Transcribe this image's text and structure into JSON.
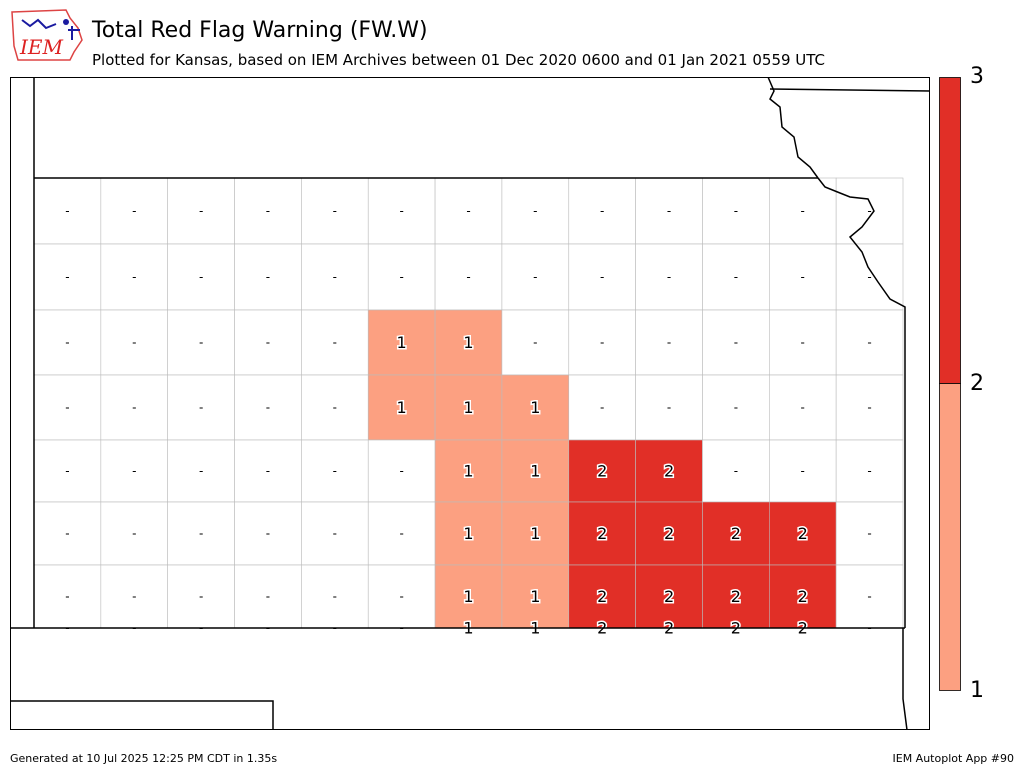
{
  "title": "Total Red Flag Warning (FW.W)",
  "subtitle": "Plotted for Kansas, based on IEM Archives  between 01 Dec 2020 0600 and 01 Jan 2021 0559 UTC",
  "logo": {
    "text": "IEM",
    "icon": "iem-logo-icon"
  },
  "footer": {
    "generated": "Generated at 10 Jul 2025 12:25 PM CDT in 1.35s",
    "app": "IEM Autoplot App #90"
  },
  "colors": {
    "level0": "#ffffff",
    "level1": "#fca081",
    "level2": "#e12f27",
    "border": "#bbbbbb",
    "state": "#000000"
  },
  "colorbar": {
    "ticks": [
      "1",
      "2",
      "3"
    ]
  },
  "map_data": {
    "state": "Kansas",
    "no_data_symbol": "-",
    "counties": [
      {
        "row": 0,
        "col": 0,
        "value": 0
      },
      {
        "row": 0,
        "col": 1,
        "value": 0
      },
      {
        "row": 0,
        "col": 2,
        "value": 0
      },
      {
        "row": 0,
        "col": 3,
        "value": 0
      },
      {
        "row": 0,
        "col": 4,
        "value": 0
      },
      {
        "row": 0,
        "col": 5,
        "value": 0
      },
      {
        "row": 0,
        "col": 6,
        "value": 0
      },
      {
        "row": 0,
        "col": 7,
        "value": 0
      },
      {
        "row": 0,
        "col": 8,
        "value": 0
      },
      {
        "row": 0,
        "col": 9,
        "value": 0
      },
      {
        "row": 0,
        "col": 10,
        "value": 0
      },
      {
        "row": 0,
        "col": 11,
        "value": 0
      },
      {
        "row": 0,
        "col": 12,
        "value": 0
      },
      {
        "row": 1,
        "col": 0,
        "value": 0
      },
      {
        "row": 1,
        "col": 1,
        "value": 0
      },
      {
        "row": 1,
        "col": 2,
        "value": 0
      },
      {
        "row": 1,
        "col": 3,
        "value": 0
      },
      {
        "row": 1,
        "col": 4,
        "value": 0
      },
      {
        "row": 1,
        "col": 5,
        "value": 0
      },
      {
        "row": 1,
        "col": 6,
        "value": 0
      },
      {
        "row": 1,
        "col": 7,
        "value": 0
      },
      {
        "row": 1,
        "col": 8,
        "value": 0
      },
      {
        "row": 1,
        "col": 9,
        "value": 0
      },
      {
        "row": 1,
        "col": 10,
        "value": 0
      },
      {
        "row": 1,
        "col": 11,
        "value": 0
      },
      {
        "row": 1,
        "col": 12,
        "value": 0
      },
      {
        "row": 2,
        "col": 0,
        "value": 0
      },
      {
        "row": 2,
        "col": 1,
        "value": 0
      },
      {
        "row": 2,
        "col": 2,
        "value": 0
      },
      {
        "row": 2,
        "col": 3,
        "value": 0
      },
      {
        "row": 2,
        "col": 4,
        "value": 0
      },
      {
        "row": 2,
        "col": 5,
        "value": 1
      },
      {
        "row": 2,
        "col": 6,
        "value": 1
      },
      {
        "row": 2,
        "col": 7,
        "value": 0
      },
      {
        "row": 2,
        "col": 8,
        "value": 0
      },
      {
        "row": 2,
        "col": 9,
        "value": 0
      },
      {
        "row": 2,
        "col": 10,
        "value": 0
      },
      {
        "row": 2,
        "col": 11,
        "value": 0
      },
      {
        "row": 2,
        "col": 12,
        "value": 0
      },
      {
        "row": 3,
        "col": 0,
        "value": 0
      },
      {
        "row": 3,
        "col": 1,
        "value": 0
      },
      {
        "row": 3,
        "col": 2,
        "value": 0
      },
      {
        "row": 3,
        "col": 3,
        "value": 0
      },
      {
        "row": 3,
        "col": 4,
        "value": 0
      },
      {
        "row": 3,
        "col": 5,
        "value": 1
      },
      {
        "row": 3,
        "col": 6,
        "value": 1
      },
      {
        "row": 3,
        "col": 7,
        "value": 1
      },
      {
        "row": 3,
        "col": 8,
        "value": 0
      },
      {
        "row": 3,
        "col": 9,
        "value": 0
      },
      {
        "row": 3,
        "col": 10,
        "value": 0
      },
      {
        "row": 3,
        "col": 11,
        "value": 0
      },
      {
        "row": 3,
        "col": 12,
        "value": 0
      },
      {
        "row": 4,
        "col": 0,
        "value": 0
      },
      {
        "row": 4,
        "col": 1,
        "value": 0
      },
      {
        "row": 4,
        "col": 2,
        "value": 0
      },
      {
        "row": 4,
        "col": 3,
        "value": 0
      },
      {
        "row": 4,
        "col": 4,
        "value": 0
      },
      {
        "row": 4,
        "col": 5,
        "value": 0
      },
      {
        "row": 4,
        "col": 6,
        "value": 1
      },
      {
        "row": 4,
        "col": 7,
        "value": 1
      },
      {
        "row": 4,
        "col": 8,
        "value": 2
      },
      {
        "row": 4,
        "col": 9,
        "value": 2
      },
      {
        "row": 4,
        "col": 10,
        "value": 0
      },
      {
        "row": 4,
        "col": 11,
        "value": 0
      },
      {
        "row": 4,
        "col": 12,
        "value": 0
      },
      {
        "row": 5,
        "col": 0,
        "value": 0
      },
      {
        "row": 5,
        "col": 1,
        "value": 0
      },
      {
        "row": 5,
        "col": 2,
        "value": 0
      },
      {
        "row": 5,
        "col": 3,
        "value": 0
      },
      {
        "row": 5,
        "col": 4,
        "value": 0
      },
      {
        "row": 5,
        "col": 5,
        "value": 0
      },
      {
        "row": 5,
        "col": 6,
        "value": 1
      },
      {
        "row": 5,
        "col": 7,
        "value": 1
      },
      {
        "row": 5,
        "col": 8,
        "value": 2
      },
      {
        "row": 5,
        "col": 9,
        "value": 2
      },
      {
        "row": 5,
        "col": 10,
        "value": 2
      },
      {
        "row": 5,
        "col": 11,
        "value": 2
      },
      {
        "row": 5,
        "col": 12,
        "value": 0
      },
      {
        "row": 6,
        "col": 0,
        "value": 0
      },
      {
        "row": 6,
        "col": 1,
        "value": 0
      },
      {
        "row": 6,
        "col": 2,
        "value": 0
      },
      {
        "row": 6,
        "col": 3,
        "value": 0
      },
      {
        "row": 6,
        "col": 4,
        "value": 0
      },
      {
        "row": 6,
        "col": 5,
        "value": 0
      },
      {
        "row": 6,
        "col": 6,
        "value": 1
      },
      {
        "row": 6,
        "col": 7,
        "value": 1
      },
      {
        "row": 6,
        "col": 8,
        "value": 2
      },
      {
        "row": 6,
        "col": 9,
        "value": 2
      },
      {
        "row": 6,
        "col": 10,
        "value": 2
      },
      {
        "row": 6,
        "col": 11,
        "value": 2
      },
      {
        "row": 6,
        "col": 12,
        "value": 0
      },
      {
        "row": 7,
        "col": 0,
        "value": 0
      },
      {
        "row": 7,
        "col": 1,
        "value": 0
      },
      {
        "row": 7,
        "col": 2,
        "value": 0
      },
      {
        "row": 7,
        "col": 3,
        "value": 0
      },
      {
        "row": 7,
        "col": 4,
        "value": 0
      },
      {
        "row": 7,
        "col": 5,
        "value": 0
      },
      {
        "row": 7,
        "col": 6,
        "value": 1
      },
      {
        "row": 7,
        "col": 7,
        "value": 1
      },
      {
        "row": 7,
        "col": 8,
        "value": 2
      },
      {
        "row": 7,
        "col": 9,
        "value": 2
      },
      {
        "row": 7,
        "col": 10,
        "value": 2
      },
      {
        "row": 7,
        "col": 11,
        "value": 2
      },
      {
        "row": 7,
        "col": 12,
        "value": 0
      }
    ]
  }
}
